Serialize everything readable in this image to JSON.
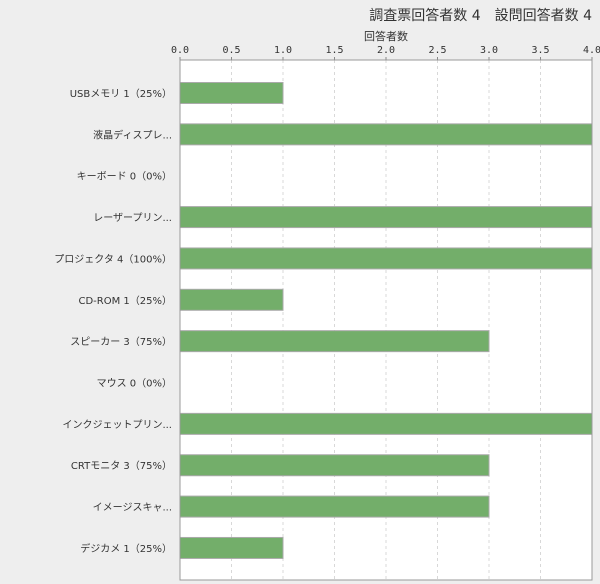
{
  "header": {
    "title": "調査票回答者数 4　設問回答者数 4"
  },
  "chart_data": {
    "type": "bar",
    "orientation": "horizontal",
    "title": "",
    "xlabel": "回答者数",
    "ylabel": "",
    "xlim": [
      0,
      4.0
    ],
    "x_ticks": [
      "0.0",
      "0.5",
      "1.0",
      "1.5",
      "2.0",
      "2.5",
      "3.0",
      "3.5",
      "4.0"
    ],
    "x_axis_position": "top",
    "grid": "vertical dashed",
    "bar_color": "#73ae6a",
    "categories": [
      "USBメモリ 1（25%）",
      "液晶ディスプレ...",
      "キーボード 0（0%）",
      "レーザープリン...",
      "プロジェクタ 4（100%）",
      "CD-ROM 1（25%）",
      "スピーカー 3（75%）",
      "マウス 0（0%）",
      "インクジェットプリン...",
      "CRTモニタ 3（75%）",
      "イメージスキャ...",
      "デジカメ 1（25%）"
    ],
    "values": [
      1,
      4,
      0,
      4,
      4,
      1,
      3,
      0,
      4,
      3,
      3,
      1
    ]
  }
}
